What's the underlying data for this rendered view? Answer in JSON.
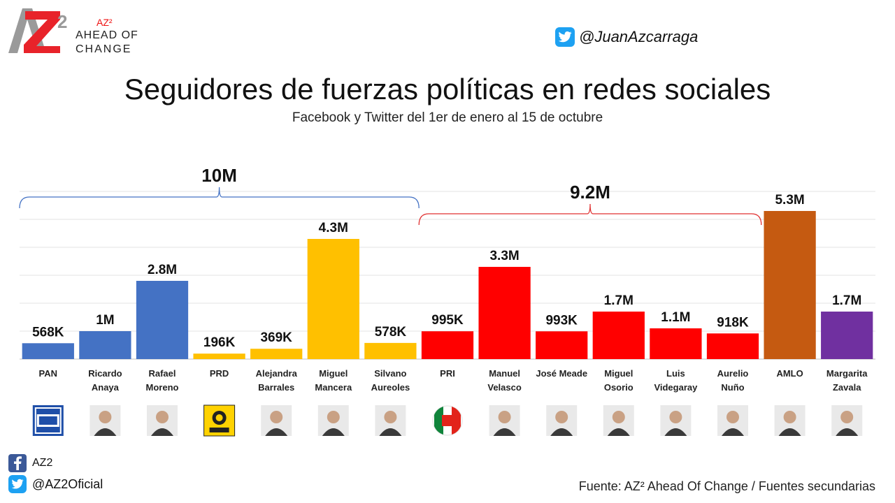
{
  "brand": {
    "mark": "AZ2",
    "superscript": "AZ²",
    "line1": "AHEAD OF",
    "line2": "CHANGE"
  },
  "twitter_handle": "@JuanAzcarraga",
  "chart_data": {
    "type": "bar",
    "title": "Seguidores de fuerzas políticas en redes sociales",
    "subtitle": "Facebook y Twitter del 1er de enero al 15 de octubre",
    "ylim": [
      0,
      6.3
    ],
    "grid": true,
    "categories": [
      "PAN",
      "Ricardo Anaya",
      "Rafael Moreno",
      "PRD",
      "Alejandra Barrales",
      "Miguel Mancera",
      "Silvano Aureoles",
      "PRI",
      "Manuel Velasco",
      "José Meade",
      "Miguel Osorio",
      "Luis Videgaray",
      "Aurelio Nuño",
      "AMLO",
      "Margarita Zavala"
    ],
    "category_lines": [
      [
        "PAN"
      ],
      [
        "Ricardo",
        "Anaya"
      ],
      [
        "Rafael",
        "Moreno"
      ],
      [
        "PRD"
      ],
      [
        "Alejandra",
        "Barrales"
      ],
      [
        "Miguel",
        "Mancera"
      ],
      [
        "Silvano",
        "Aureoles"
      ],
      [
        "PRI"
      ],
      [
        "Manuel",
        "Velasco"
      ],
      [
        "José Meade"
      ],
      [
        "Miguel",
        "Osorio"
      ],
      [
        "Luis",
        "Videgaray"
      ],
      [
        "Aurelio",
        "Nuño"
      ],
      [
        "AMLO"
      ],
      [
        "Margarita",
        "Zavala"
      ]
    ],
    "values": [
      0.568,
      1.0,
      2.8,
      0.196,
      0.369,
      4.3,
      0.578,
      0.995,
      3.3,
      0.993,
      1.7,
      1.1,
      0.918,
      5.3,
      1.7
    ],
    "value_unit": "millions of followers",
    "data_labels": [
      "568K",
      "1M",
      "2.8M",
      "196K",
      "369K",
      "4.3M",
      "578K",
      "995K",
      "3.3M",
      "993K",
      "1.7M",
      "1.1M",
      "918K",
      "5.3M",
      "1.7M"
    ],
    "colors": [
      "#4472c4",
      "#4472c4",
      "#4472c4",
      "#ffc000",
      "#ffc000",
      "#ffc000",
      "#ffc000",
      "#ff0000",
      "#ff0000",
      "#ff0000",
      "#ff0000",
      "#ff0000",
      "#ff0000",
      "#c55a11",
      "#7030a0"
    ],
    "brackets": [
      {
        "label": "10M",
        "from": 0,
        "to": 6,
        "color": "#4472c4"
      },
      {
        "label": "9.2M",
        "from": 7,
        "to": 12,
        "color": "#e03030"
      }
    ],
    "icons": [
      "pan-logo",
      "photo-ricardo-anaya",
      "photo-rafael-moreno",
      "prd-logo",
      "photo-alejandra-barrales",
      "photo-miguel-mancera",
      "photo-silvano-aureoles",
      "pri-logo",
      "photo-manuel-velasco",
      "photo-jose-meade",
      "photo-miguel-osorio",
      "photo-luis-videgaray",
      "photo-aurelio-nuno",
      "photo-amlo",
      "photo-margarita-zavala"
    ]
  },
  "social": {
    "facebook": "AZ2",
    "twitter": "@AZ2Oficial"
  },
  "source": "Fuente: AZ² Ahead Of Change / Fuentes secundarias"
}
